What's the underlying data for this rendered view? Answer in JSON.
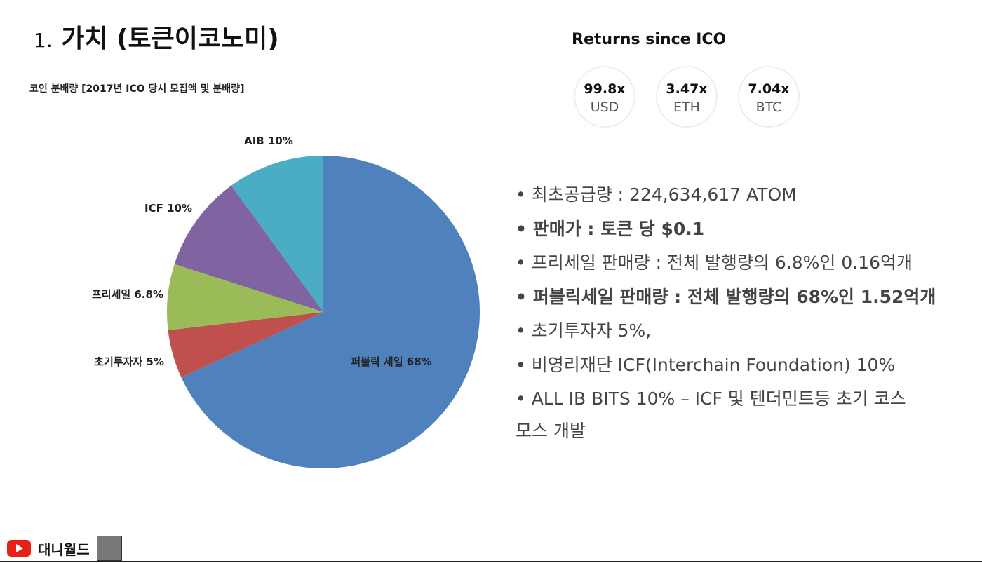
{
  "title_number": "1.",
  "title": "가치 (토큰이코노미)",
  "returns": {
    "heading": "Returns since ICO",
    "items": [
      {
        "value": "99.8x",
        "unit": "USD"
      },
      {
        "value": "3.47x",
        "unit": "ETH"
      },
      {
        "value": "7.04x",
        "unit": "BTC"
      }
    ]
  },
  "bullets": [
    "최초공급량 : 224,634,617 ATOM",
    "판매가 : 토큰 당 $0.1",
    "프리세일 판매량 : 전체 발행량의 6.8%인 0.16억개",
    "퍼블릭세일 판매량 : 전체 발행량의 68%인 1.52억개",
    "초기투자자 5%,",
    "비영리재단 ICF(Interchain Foundation) 10%",
    "ALL IB BITS 10% – ICF 및 텐더민트등 초기 코스모스 개발"
  ],
  "footer": {
    "channel": "대니월드"
  },
  "chart_data": {
    "type": "pie",
    "title": "코인 분배량 [2017년 ICO 당시 모집액 및 분배량]",
    "categories": [
      "퍼블릭 세일",
      "초기투자자",
      "프리세일",
      "ICF",
      "AIB"
    ],
    "values": [
      68,
      5,
      6.8,
      10,
      10
    ],
    "value_labels": [
      "68%",
      "5%",
      "6.8%",
      "10%",
      "10%"
    ],
    "colors": [
      "#4f81bd",
      "#c0504d",
      "#9bbb59",
      "#8064a2",
      "#4bacc6"
    ]
  }
}
